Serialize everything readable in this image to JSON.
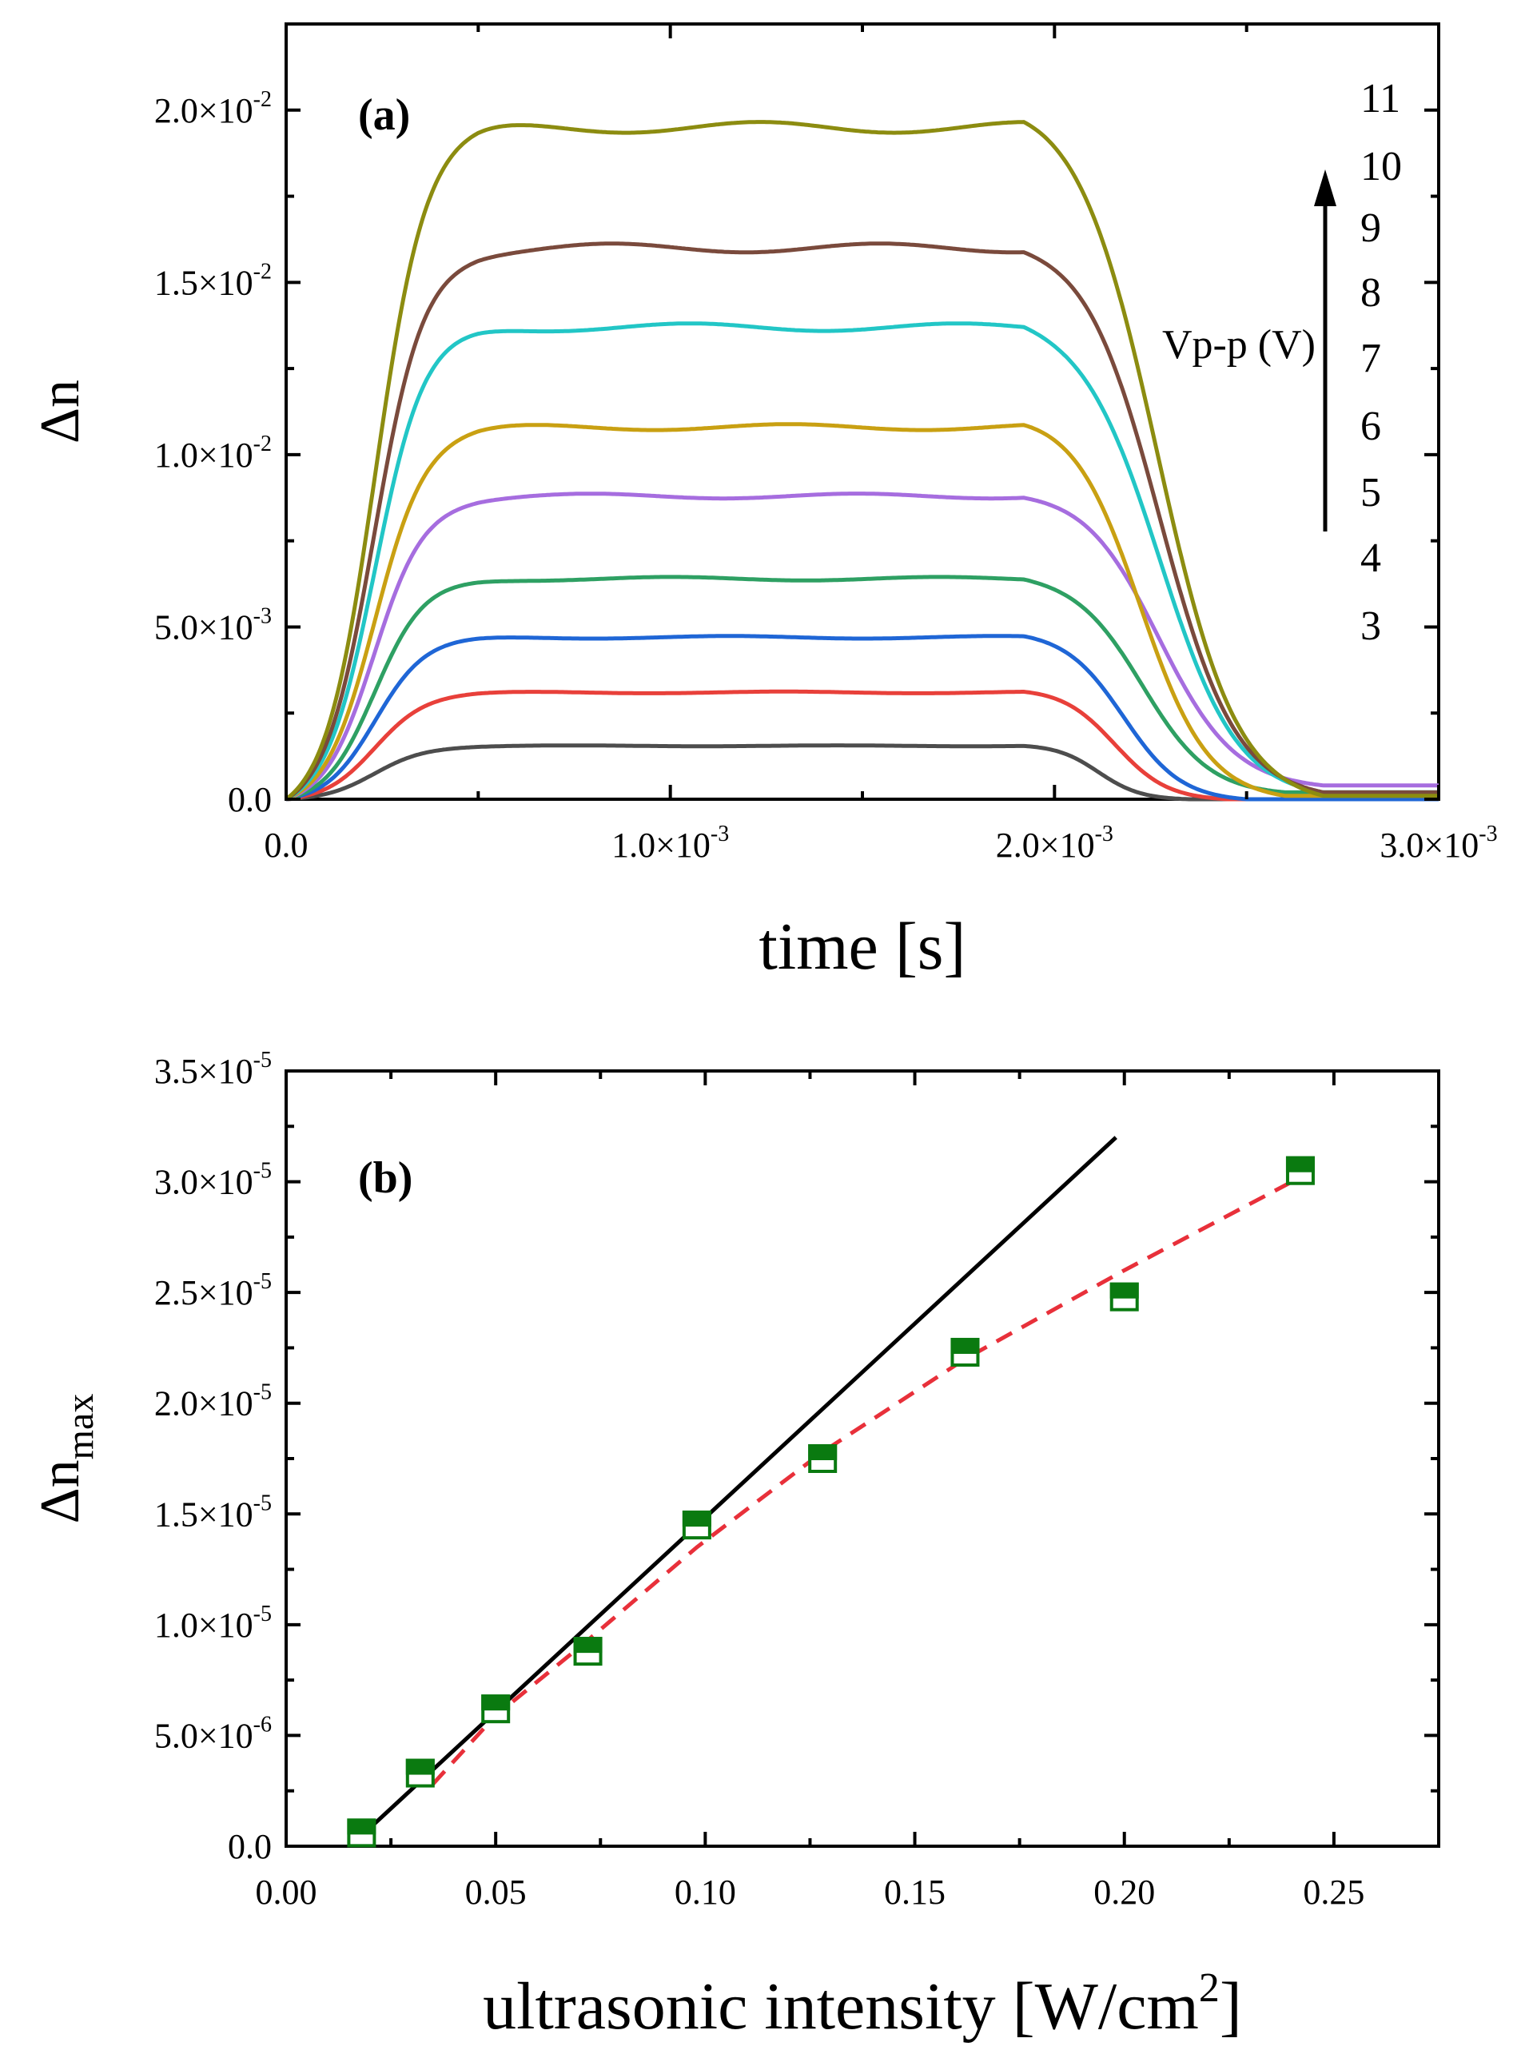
{
  "chart_data": [
    {
      "panel": "(a)",
      "type": "line",
      "xlabel": "time [s]",
      "ylabel": "Δn",
      "xlim": [
        0,
        0.003
      ],
      "ylim": [
        0,
        0.0225
      ],
      "xticks": [
        {
          "value": 0,
          "base": "0.0",
          "exp": ""
        },
        {
          "value": 0.001,
          "base": "1.0×10",
          "exp": "-3"
        },
        {
          "value": 0.002,
          "base": "2.0×10",
          "exp": "-3"
        },
        {
          "value": 0.003,
          "base": "3.0×10",
          "exp": "-3"
        }
      ],
      "yticks": [
        {
          "value": 0,
          "base": "0.0",
          "exp": ""
        },
        {
          "value": 0.005,
          "base": "5.0×10",
          "exp": "-3"
        },
        {
          "value": 0.01,
          "base": "1.0×10",
          "exp": "-2"
        },
        {
          "value": 0.015,
          "base": "1.5×10",
          "exp": "-2"
        },
        {
          "value": 0.02,
          "base": "2.0×10",
          "exp": "-2"
        }
      ],
      "legend_title": "Vp-p (V)",
      "voltage_labels": [
        "11",
        "10",
        "9",
        "8",
        "7",
        "6",
        "5",
        "4",
        "3"
      ],
      "series": [
        {
          "name": "3",
          "color": "#4d4d4d",
          "plateau": 0.00155,
          "end_level": 0.0,
          "end_time": 0.00235
        },
        {
          "name": "4",
          "color": "#e8403a",
          "plateau": 0.0031,
          "end_level": 0.0,
          "end_time": 0.00245
        },
        {
          "name": "5",
          "color": "#1f66d6",
          "plateau": 0.0047,
          "end_level": 0.0,
          "end_time": 0.0025
        },
        {
          "name": "6",
          "color": "#2ea063",
          "plateau": 0.0064,
          "end_level": 0.0002,
          "end_time": 0.0026
        },
        {
          "name": "7",
          "color": "#a66ddf",
          "plateau": 0.0088,
          "end_level": 0.0004,
          "end_time": 0.0027
        },
        {
          "name": "8",
          "color": "#c9a012",
          "plateau": 0.0108,
          "end_level": 0.0001,
          "end_time": 0.0026
        },
        {
          "name": "9",
          "color": "#22c6c6",
          "plateau": 0.0137,
          "end_level": 0.0002,
          "end_time": 0.0027
        },
        {
          "name": "10",
          "color": "#7a4a3c",
          "plateau": 0.016,
          "end_level": 0.0002,
          "end_time": 0.0027
        },
        {
          "name": "11",
          "color": "#8c8c10",
          "plateau": 0.0195,
          "end_level": 0.0001,
          "end_time": 0.0027
        }
      ]
    },
    {
      "panel": "(b)",
      "type": "scatter",
      "xlabel": "ultrasonic intensity [W/cm",
      "xlabel_sup": "2",
      "xlabel_end": "]",
      "ylabel_main": "Δn",
      "ylabel_sub": "max",
      "xlim": [
        0,
        0.275
      ],
      "ylim": [
        0,
        3.5e-05
      ],
      "xticks": [
        "0.00",
        "0.05",
        "0.10",
        "0.15",
        "0.20",
        "0.25"
      ],
      "xtick_values": [
        0,
        0.05,
        0.1,
        0.15,
        0.2,
        0.25
      ],
      "yticks": [
        {
          "value": 0,
          "base": "0.0",
          "exp": ""
        },
        {
          "value": 5e-06,
          "base": "5.0×10",
          "exp": "-6"
        },
        {
          "value": 1e-05,
          "base": "1.0×10",
          "exp": "-5"
        },
        {
          "value": 1.5e-05,
          "base": "1.5×10",
          "exp": "-5"
        },
        {
          "value": 2e-05,
          "base": "2.0×10",
          "exp": "-5"
        },
        {
          "value": 2.5e-05,
          "base": "2.5×10",
          "exp": "-5"
        },
        {
          "value": 3e-05,
          "base": "3.0×10",
          "exp": "-5"
        },
        {
          "value": 3.5e-05,
          "base": "3.5×10",
          "exp": "-5"
        }
      ],
      "marker_color": "#0a7a10",
      "points": [
        {
          "x": 0.018,
          "y": 6e-07
        },
        {
          "x": 0.032,
          "y": 3.3e-06
        },
        {
          "x": 0.05,
          "y": 6.2e-06
        },
        {
          "x": 0.072,
          "y": 8.8e-06
        },
        {
          "x": 0.098,
          "y": 1.45e-05
        },
        {
          "x": 0.128,
          "y": 1.75e-05
        },
        {
          "x": 0.162,
          "y": 2.23e-05
        },
        {
          "x": 0.2,
          "y": 2.48e-05
        },
        {
          "x": 0.242,
          "y": 3.05e-05
        }
      ],
      "linear_fit": {
        "color": "#000000",
        "x": [
          0.017,
          0.198
        ],
        "y": [
          3e-07,
          3.2e-05
        ]
      },
      "dashed_fit": {
        "color": "#e8303a",
        "x": [
          0.035,
          0.05,
          0.072,
          0.098,
          0.128,
          0.162,
          0.2,
          0.242
        ],
        "y": [
          2.8e-06,
          5.9e-06,
          9.3e-06,
          1.35e-05,
          1.78e-05,
          2.2e-05,
          2.6e-05,
          3.02e-05
        ]
      }
    }
  ]
}
